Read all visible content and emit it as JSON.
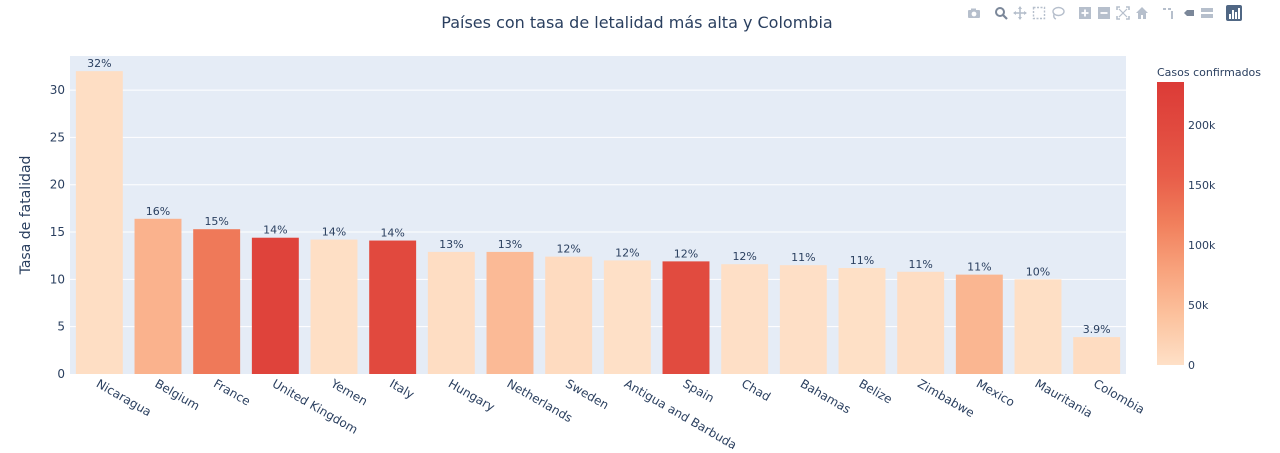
{
  "chart_data": {
    "type": "bar",
    "title": "Países con tasa de letalidad más alta y Colombia",
    "ylabel": "Tasa de fatalidad",
    "xlabel": "",
    "ylim": [
      0,
      33.6
    ],
    "yticks": [
      0,
      5,
      10,
      15,
      20,
      25,
      30
    ],
    "categories": [
      "Nicaragua",
      "Belgium",
      "France",
      "United Kingdom",
      "Yemen",
      "Italy",
      "Hungary",
      "Netherlands",
      "Sweden",
      "Antigua and Barbuda",
      "Spain",
      "Chad",
      "Bahamas",
      "Belize",
      "Zimbabwe",
      "Mexico",
      "Mauritania",
      "Colombia"
    ],
    "values": [
      32.0,
      16.4,
      15.3,
      14.4,
      14.2,
      14.1,
      12.9,
      12.9,
      12.4,
      12.0,
      11.9,
      11.6,
      11.5,
      11.2,
      10.8,
      10.5,
      10.0,
      3.9
    ],
    "text_labels": [
      "32%",
      "16%",
      "15%",
      "14%",
      "14%",
      "14%",
      "13%",
      "13%",
      "12%",
      "12%",
      "12%",
      "12%",
      "11%",
      "11%",
      "11%",
      "11%",
      "10%",
      "3.9%"
    ],
    "color_values": [
      3000,
      60000,
      125000,
      215000,
      2000,
      200000,
      4000,
      50000,
      7000,
      30,
      195000,
      900,
      800,
      500,
      4000,
      55000,
      1500,
      6000
    ],
    "grid": true,
    "colorbar": {
      "title": "Casos confirmados",
      "range": [
        0,
        236000
      ],
      "ticks": [
        0,
        50000,
        100000,
        150000,
        200000
      ],
      "tick_labels": [
        "0",
        "50k",
        "100k",
        "150k",
        "200k"
      ],
      "colors": [
        "#fee0c7",
        "#fcc39f",
        "#f8a37d",
        "#f17f5c",
        "#e85d49",
        "#e14a3f",
        "#dc3b37"
      ]
    },
    "colors": {
      "plot_bg": "#e5ecf6",
      "grid": "#ffffff",
      "text": "#2a3f5f"
    }
  },
  "modebar": {
    "icons": [
      "camera-icon",
      "zoom-icon",
      "pan-icon",
      "box-select-icon",
      "lasso-icon",
      "zoom-in-icon",
      "zoom-out-icon",
      "autoscale-icon",
      "reset-axes-icon",
      "spike-lines-icon",
      "hover-closest-icon",
      "hover-compare-icon",
      "plotly-logo-icon"
    ]
  }
}
